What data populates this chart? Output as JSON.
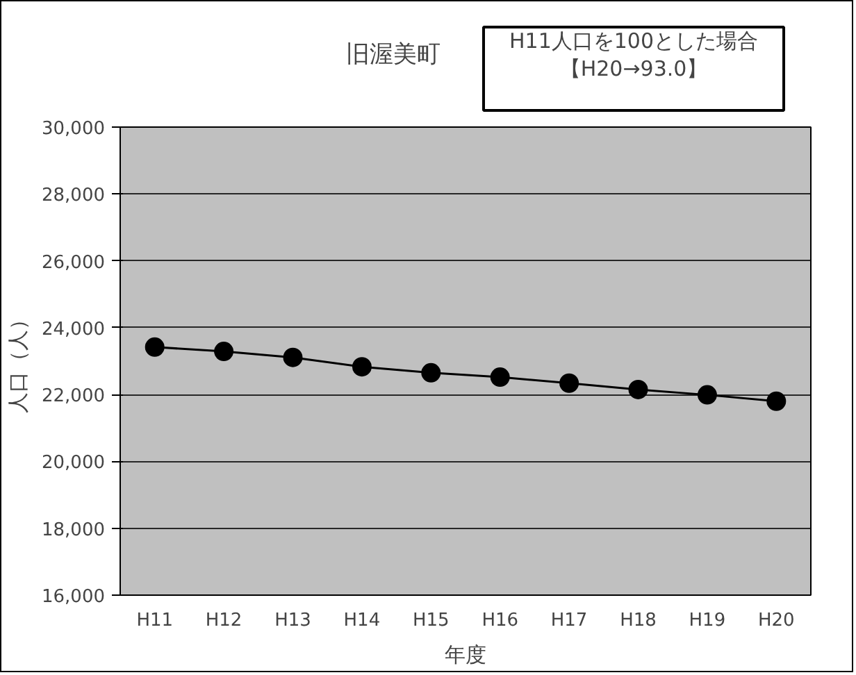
{
  "chart_data": {
    "type": "line",
    "title": "旧渥美町",
    "annotations": [
      "H11人口を100とした場合",
      "【H20→93.0】"
    ],
    "xlabel": "年度",
    "ylabel": "人口（人）",
    "categories": [
      "H11",
      "H12",
      "H13",
      "H14",
      "H15",
      "H16",
      "H17",
      "H18",
      "H19",
      "H20"
    ],
    "series": [
      {
        "color": "#000000",
        "values": [
          23420,
          23290,
          23110,
          22830,
          22650,
          22520,
          22340,
          22150,
          21990,
          21800
        ]
      }
    ],
    "ylim": [
      16000,
      30000
    ],
    "yticks": [
      {
        "value": 16000,
        "label": "16,000"
      },
      {
        "value": 18000,
        "label": "18,000"
      },
      {
        "value": 20000,
        "label": "20,000"
      },
      {
        "value": 22000,
        "label": "22,000"
      },
      {
        "value": 24000,
        "label": "24,000"
      },
      {
        "value": 26000,
        "label": "26,000"
      },
      {
        "value": 28000,
        "label": "28,000"
      },
      {
        "value": 30000,
        "label": "30,000"
      }
    ],
    "grid": "y",
    "marker": "circle",
    "line_style": "solid"
  }
}
